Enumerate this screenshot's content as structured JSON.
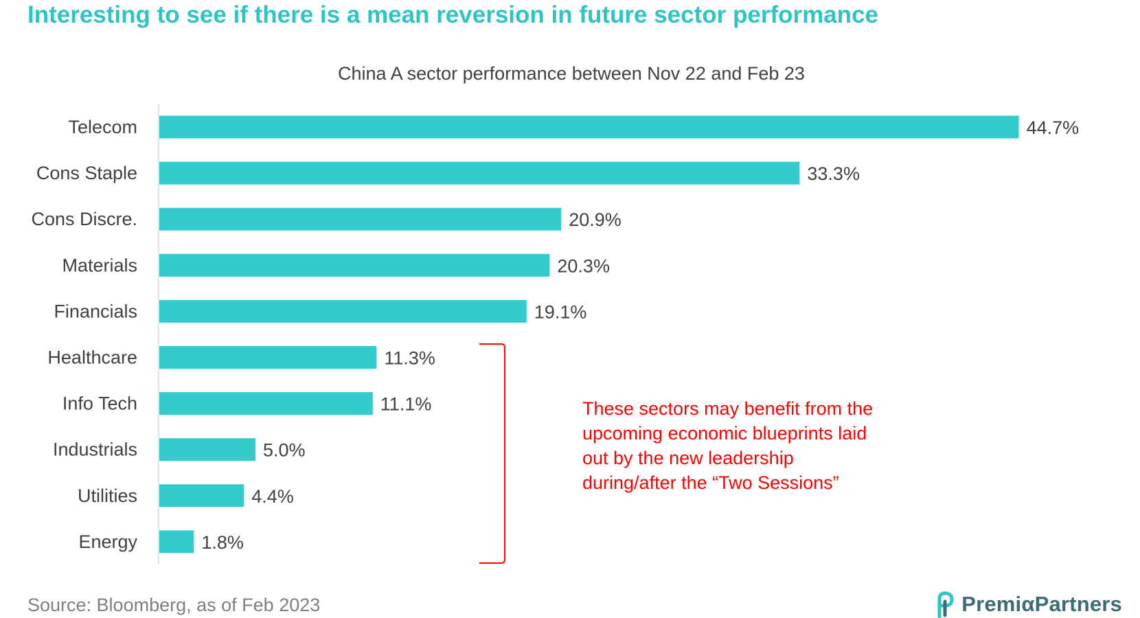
{
  "headline": "Interesting to see if there is a mean reversion in future sector performance",
  "chart_data": {
    "type": "bar",
    "orientation": "horizontal",
    "title": "China A sector performance between Nov 22 and Feb 23",
    "categories": [
      "Telecom",
      "Cons Staple",
      "Cons Discre.",
      "Materials",
      "Financials",
      "Healthcare",
      "Info Tech",
      "Industrials",
      "Utilities",
      "Energy"
    ],
    "values": [
      44.7,
      33.3,
      20.9,
      20.3,
      19.1,
      11.3,
      11.1,
      5.0,
      4.4,
      1.8
    ],
    "value_labels": [
      "44.7%",
      "33.3%",
      "20.9%",
      "20.3%",
      "19.1%",
      "11.3%",
      "11.1%",
      "5.0%",
      "4.4%",
      "1.8%"
    ],
    "xlim": [
      0,
      50
    ],
    "bar_color": "#33cccc",
    "grid": false,
    "legend": "none",
    "annotation": {
      "text_lines": [
        "These sectors may benefit from the",
        "upcoming economic blueprints laid",
        "out by the new leadership",
        "during/after the “Two Sessions”"
      ],
      "bracketed_categories": [
        "Healthcare",
        "Info Tech",
        "Industrials",
        "Utilities",
        "Energy"
      ],
      "color": "#ff0000"
    }
  },
  "footer": {
    "source": "Source: Bloomberg, as of Feb 2023",
    "brand": "PremiαPartners",
    "brand_icon": "premia-logo-icon"
  },
  "colors": {
    "accent": "#2ec4c4",
    "bar": "#33cccc",
    "annotation": "#ff0000",
    "text": "#404040",
    "source_text": "#7f7f7f",
    "brand": "#3f6b74"
  }
}
